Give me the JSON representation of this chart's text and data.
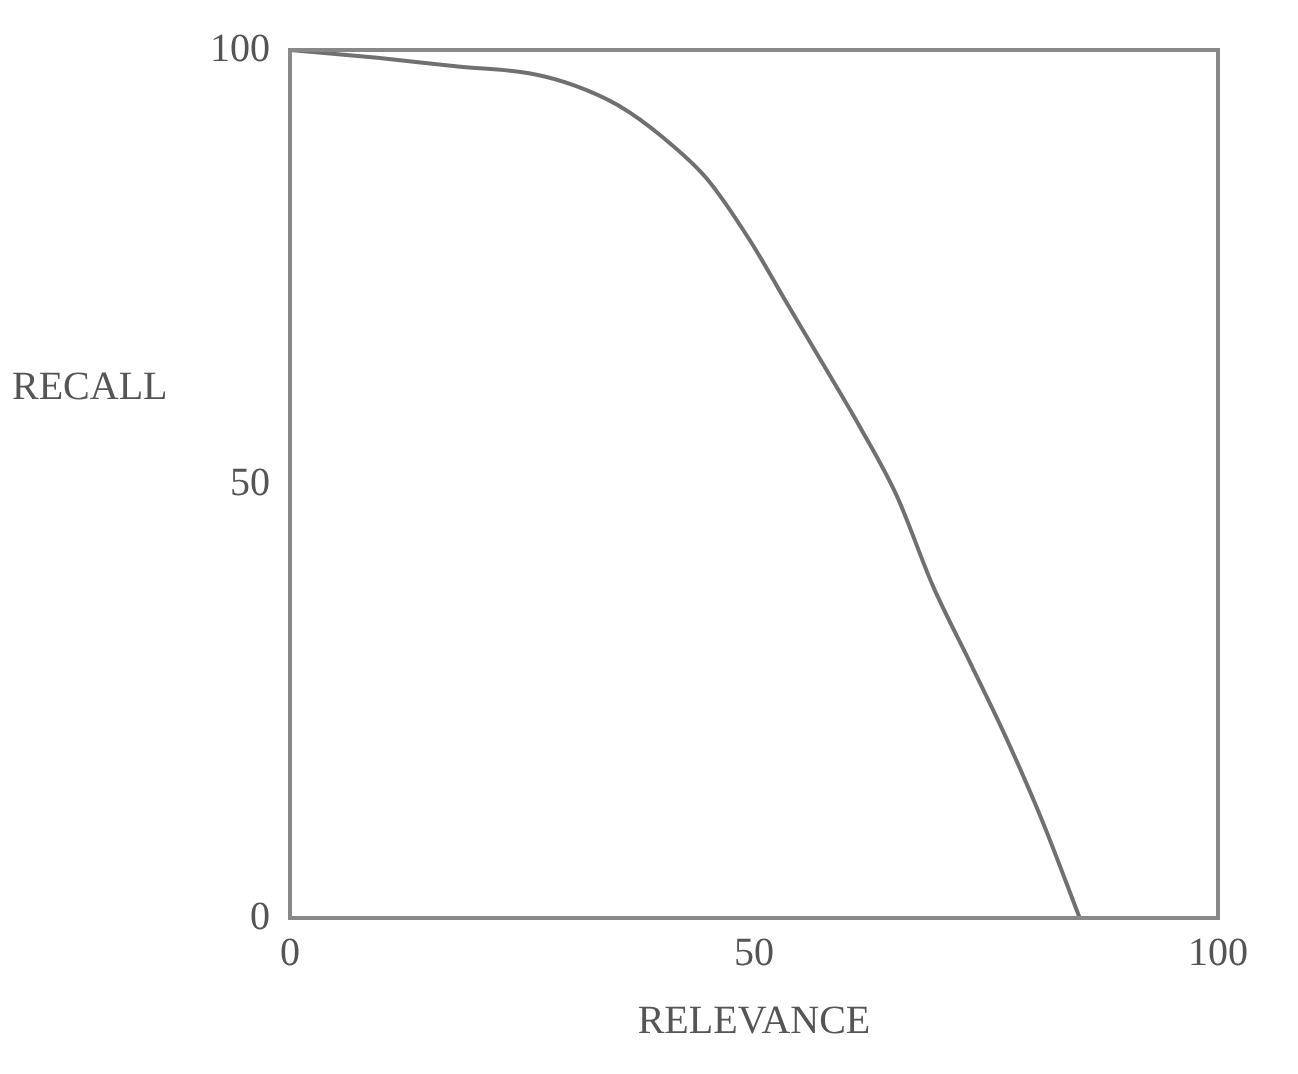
{
  "chart_data": {
    "type": "line",
    "xlabel": "RELEVANCE",
    "ylabel": "RECALL",
    "xlim": [
      0,
      100
    ],
    "ylim": [
      0,
      100
    ],
    "xticks": [
      0,
      50,
      100
    ],
    "yticks": [
      0,
      50,
      100
    ],
    "grid": false,
    "legend": false,
    "marker": "none",
    "line_style": "solid",
    "series": [
      {
        "color": "#707070",
        "x": [
          0,
          9.4,
          18.1,
          25.9,
          30.7,
          35.4,
          40.1,
          44.9,
          49.6,
          53.5,
          57.5,
          61.4,
          65.4,
          69.3,
          73.3,
          77.2,
          81.1,
          85.1
        ],
        "values": [
          100,
          99.1,
          98.1,
          97.3,
          95.9,
          93.6,
          90.0,
          85.2,
          78.0,
          70.9,
          63.7,
          56.6,
          48.6,
          38.2,
          29.4,
          20.7,
          11.1,
          0
        ]
      }
    ]
  }
}
